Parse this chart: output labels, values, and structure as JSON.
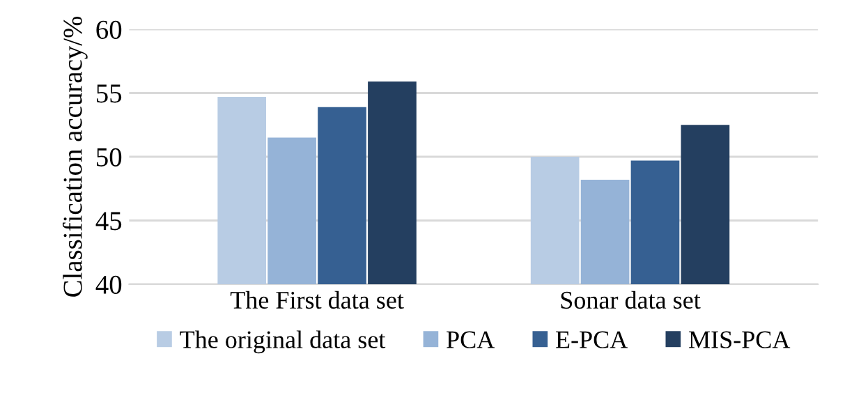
{
  "chart_data": {
    "type": "bar",
    "ylabel": "Classification accuracy/%",
    "categories": [
      "The First data set",
      "Sonar data set"
    ],
    "series": [
      {
        "name": "The original data set",
        "color": "#b8cce4",
        "values": [
          54.7,
          50.0
        ]
      },
      {
        "name": "PCA",
        "color": "#95b3d7",
        "values": [
          51.5,
          48.2
        ]
      },
      {
        "name": "E-PCA",
        "color": "#366092",
        "values": [
          53.9,
          49.7
        ]
      },
      {
        "name": "MIS-PCA",
        "color": "#243f60",
        "values": [
          55.9,
          52.5
        ]
      }
    ],
    "ylim": [
      40,
      60
    ],
    "yticks": [
      40,
      45,
      50,
      55,
      60
    ],
    "grid": "y",
    "legend": "bottom"
  }
}
